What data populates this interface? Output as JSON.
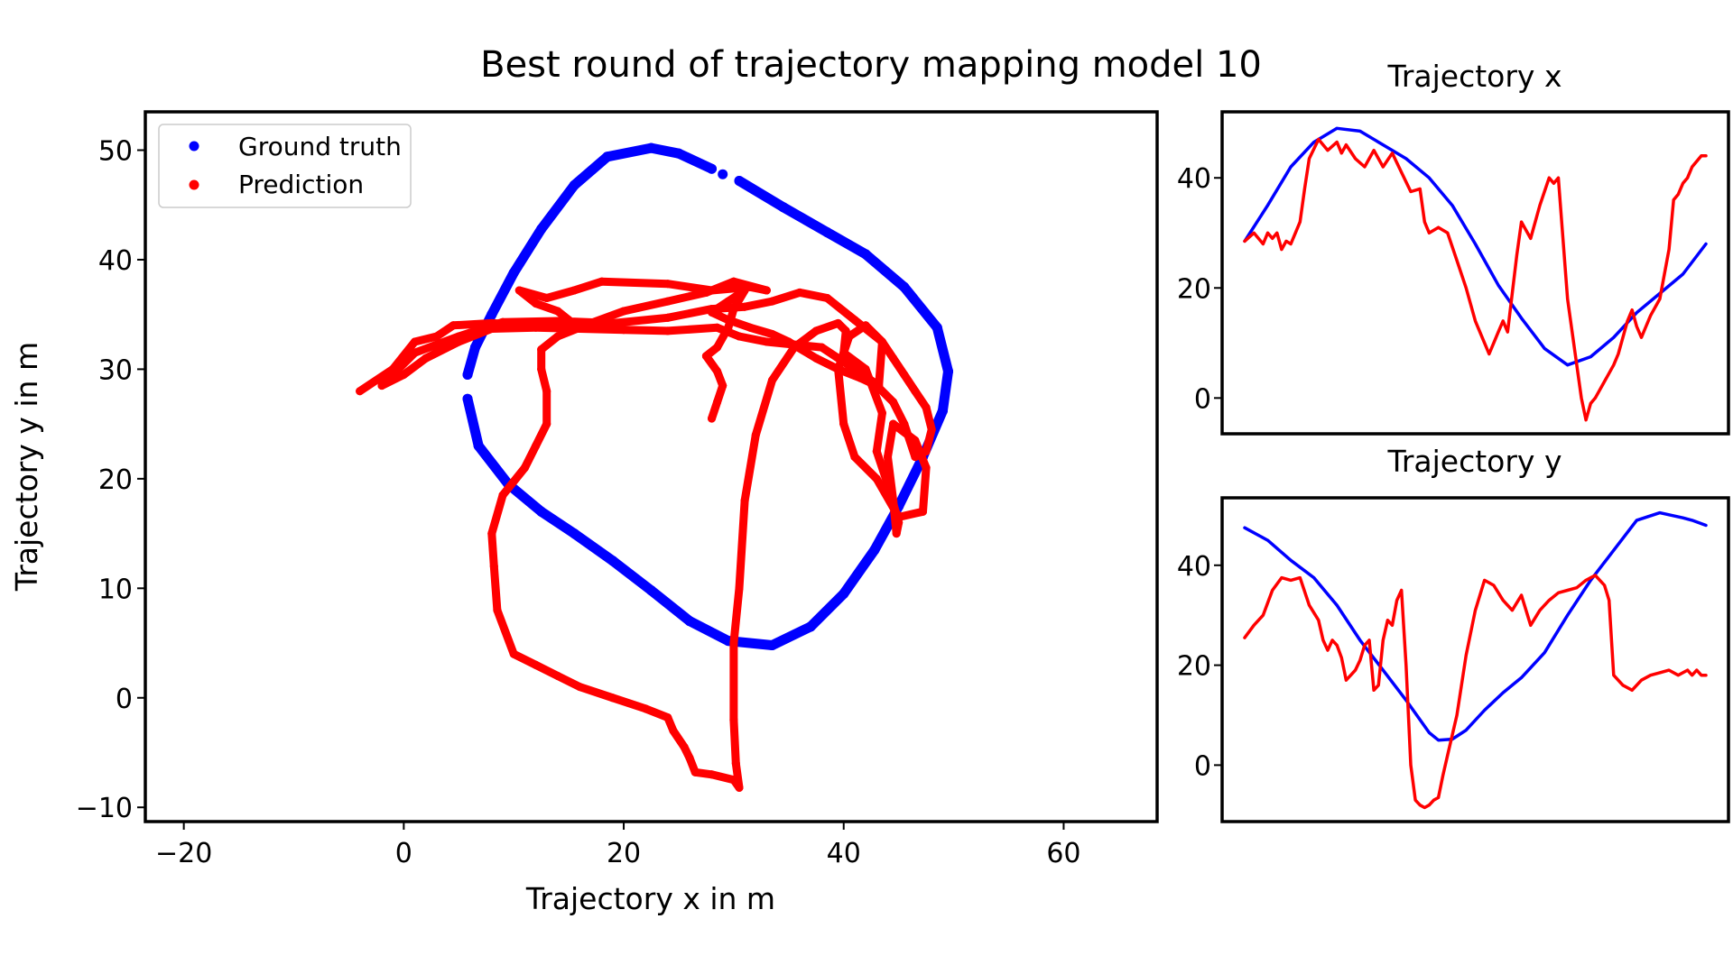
{
  "figure": {
    "title": "Best round of trajectory mapping model 10"
  },
  "chart_data": [
    {
      "type": "scatter",
      "title": "",
      "xlabel": "Trajectory x in m",
      "ylabel": "Trajectory y in m",
      "xlim": [
        -23.5,
        68.5
      ],
      "ylim": [
        -11.3,
        53.5
      ],
      "xticks": [
        -20,
        0,
        20,
        40,
        60
      ],
      "yticks": [
        -10,
        0,
        10,
        20,
        30,
        40,
        50
      ],
      "xtick_labels": [
        "−20",
        "0",
        "20",
        "40",
        "60"
      ],
      "ytick_labels": [
        "−10",
        "0",
        "10",
        "20",
        "30",
        "40",
        "50"
      ],
      "grid": false,
      "legend": {
        "placement": "top-left",
        "entries": [
          "Ground truth",
          "Prediction"
        ]
      },
      "series": [
        {
          "name": "Ground truth",
          "color": "#0000ff",
          "points": [
            [
              28,
              48.3
            ],
            [
              25,
              49.7
            ],
            [
              22.5,
              50.2
            ],
            [
              18.5,
              49.4
            ],
            [
              15.5,
              46.8
            ],
            [
              12.5,
              42.8
            ],
            [
              10,
              38.8
            ],
            [
              8,
              35
            ],
            [
              6.5,
              32
            ],
            [
              5.8,
              29.5
            ],
            [
              5.8,
              27.3
            ],
            [
              6.8,
              23
            ],
            [
              9.5,
              19.5
            ],
            [
              12.5,
              17
            ],
            [
              15.5,
              15
            ],
            [
              19,
              12.5
            ],
            [
              22.5,
              9.8
            ],
            [
              26,
              7
            ],
            [
              29.5,
              5.2
            ],
            [
              33.5,
              4.8
            ],
            [
              37,
              6.5
            ],
            [
              40,
              9.5
            ],
            [
              42.8,
              13.5
            ],
            [
              45,
              17.5
            ],
            [
              47.2,
              22
            ],
            [
              49,
              26.2
            ],
            [
              49.5,
              29.8
            ],
            [
              48.5,
              33.8
            ],
            [
              45.5,
              37.5
            ],
            [
              42,
              40.5
            ],
            [
              38.5,
              42.5
            ],
            [
              34.5,
              44.8
            ],
            [
              30.5,
              47.2
            ],
            [
              29,
              47.8
            ]
          ]
        },
        {
          "name": "Prediction",
          "color": "#ff0000",
          "points": [
            [
              -4,
              28
            ],
            [
              -1,
              30
            ],
            [
              1,
              32.5
            ],
            [
              3,
              33
            ],
            [
              4.5,
              34
            ],
            [
              8,
              34.2
            ],
            [
              12,
              34
            ],
            [
              15,
              34.5
            ],
            [
              14,
              35.3
            ],
            [
              12,
              36
            ],
            [
              10.5,
              37.2
            ],
            [
              13,
              36.5
            ],
            [
              15.5,
              37.2
            ],
            [
              18,
              38
            ],
            [
              24,
              37.8
            ],
            [
              28,
              37.2
            ],
            [
              31.5,
              37.5
            ],
            [
              33,
              37.2
            ],
            [
              30,
              38
            ],
            [
              27.5,
              37
            ],
            [
              24,
              36.2
            ],
            [
              20,
              35.3
            ],
            [
              17,
              34.2
            ],
            [
              14,
              33
            ],
            [
              12.5,
              31.8
            ],
            [
              12.5,
              30
            ],
            [
              13,
              28
            ],
            [
              13,
              25
            ],
            [
              12,
              23
            ],
            [
              11,
              21
            ],
            [
              9,
              18.5
            ],
            [
              8,
              15
            ],
            [
              8.2,
              12
            ],
            [
              8.5,
              8
            ],
            [
              10,
              4
            ],
            [
              12,
              3
            ],
            [
              14,
              2
            ],
            [
              16,
              1
            ],
            [
              19,
              0
            ],
            [
              22,
              -1
            ],
            [
              24,
              -1.8
            ],
            [
              24.5,
              -3
            ],
            [
              25.5,
              -4.5
            ],
            [
              26,
              -5.5
            ],
            [
              26.5,
              -6.8
            ],
            [
              28,
              -7
            ],
            [
              30,
              -7.5
            ],
            [
              30.5,
              -8.2
            ],
            [
              30.2,
              -6
            ],
            [
              30,
              -2
            ],
            [
              30,
              5
            ],
            [
              30.5,
              10
            ],
            [
              31,
              18
            ],
            [
              32,
              24
            ],
            [
              33.5,
              29
            ],
            [
              35.5,
              32
            ],
            [
              37.5,
              33.5
            ],
            [
              39.5,
              34.2
            ],
            [
              40.2,
              33.5
            ],
            [
              40,
              31.5
            ],
            [
              42,
              30
            ],
            [
              43.5,
              26
            ],
            [
              43,
              22.5
            ],
            [
              44,
              19.5
            ],
            [
              45,
              16
            ],
            [
              44.8,
              15
            ],
            [
              44.5,
              18
            ],
            [
              44,
              22
            ],
            [
              44.5,
              25
            ],
            [
              46.5,
              23.5
            ],
            [
              47.5,
              21
            ],
            [
              47.2,
              17
            ],
            [
              45,
              16.5
            ],
            [
              43,
              20
            ],
            [
              41,
              22
            ],
            [
              40,
              25
            ],
            [
              39.5,
              30
            ],
            [
              40.5,
              33
            ],
            [
              42,
              34
            ],
            [
              43.5,
              32.5
            ],
            [
              43.2,
              28.5
            ],
            [
              41,
              30
            ],
            [
              38,
              32
            ],
            [
              33,
              32.5
            ],
            [
              30.5,
              33
            ],
            [
              28.5,
              33.8
            ],
            [
              24,
              33.5
            ],
            [
              20,
              33.6
            ],
            [
              16,
              33.7
            ],
            [
              12,
              33.8
            ],
            [
              8,
              33.7
            ],
            [
              5,
              32.5
            ],
            [
              2,
              31
            ],
            [
              0,
              29.5
            ],
            [
              -2,
              28.5
            ],
            [
              1,
              31.5
            ],
            [
              5,
              33
            ],
            [
              9,
              34.3
            ],
            [
              14,
              34.4
            ],
            [
              19,
              34.2
            ],
            [
              24,
              34.7
            ],
            [
              28,
              35.5
            ],
            [
              31,
              35.7
            ],
            [
              33.5,
              36.2
            ],
            [
              36,
              37
            ],
            [
              38.5,
              36.5
            ],
            [
              41,
              34.5
            ],
            [
              43.5,
              32.5
            ],
            [
              44.5,
              31
            ],
            [
              45.5,
              29.5
            ],
            [
              46.5,
              28
            ],
            [
              47.5,
              26.5
            ],
            [
              48,
              24.5
            ],
            [
              47.5,
              22.5
            ],
            [
              46.5,
              22
            ],
            [
              45.5,
              25
            ],
            [
              44.5,
              27
            ],
            [
              43,
              28.5
            ],
            [
              41.5,
              29.2
            ],
            [
              39.5,
              30
            ],
            [
              37.5,
              31
            ],
            [
              35,
              32.5
            ],
            [
              33.5,
              33.2
            ],
            [
              31.5,
              33.8
            ],
            [
              29.5,
              34.5
            ],
            [
              28,
              35.2
            ],
            [
              29.5,
              36.2
            ],
            [
              31,
              37.2
            ],
            [
              30,
              35.5
            ],
            [
              29.5,
              33.8
            ],
            [
              28.5,
              32
            ],
            [
              27.5,
              31.2
            ],
            [
              28.5,
              29.8
            ],
            [
              29,
              28.5
            ],
            [
              28.5,
              27
            ],
            [
              28,
              25.5
            ]
          ]
        }
      ]
    },
    {
      "type": "line",
      "title": "Trajectory x",
      "xlabel": "",
      "ylabel": "",
      "ylim": [
        -6.5,
        52
      ],
      "yticks": [
        0,
        20,
        40
      ],
      "ytick_labels": [
        "0",
        "20",
        "40"
      ],
      "xticks": [],
      "grid": false,
      "series": [
        {
          "name": "Ground truth",
          "color": "#0000ff",
          "x": [
            0,
            5,
            10,
            15,
            20,
            25,
            30,
            35,
            40,
            45,
            50,
            55,
            60,
            65,
            70,
            75,
            80,
            85,
            90,
            95,
            100
          ],
          "y": [
            28.5,
            35,
            42,
            46.5,
            49,
            48.5,
            46,
            43.5,
            40,
            35,
            28,
            20.5,
            14.5,
            9,
            6,
            7.5,
            11,
            15.5,
            19,
            22.5,
            28
          ]
        },
        {
          "name": "Prediction",
          "color": "#ff0000",
          "x": [
            0,
            2,
            4,
            5,
            6,
            7,
            8,
            9,
            10,
            11,
            12,
            13,
            14,
            16,
            18,
            20,
            21,
            22,
            24,
            26,
            28,
            30,
            32,
            34,
            36,
            38,
            39,
            40,
            42,
            44,
            46,
            48,
            50,
            52,
            53,
            54,
            55,
            56,
            57,
            58,
            59,
            60,
            62,
            64,
            66,
            67,
            68,
            70,
            72,
            73,
            74,
            75,
            76,
            78,
            80,
            81,
            82,
            83,
            84,
            85,
            86,
            87,
            88,
            90,
            92,
            93,
            94,
            95,
            96,
            97,
            98,
            99,
            100
          ],
          "y": [
            28.5,
            30,
            28,
            30,
            29,
            30,
            27,
            28.5,
            28,
            30,
            32,
            38,
            43.5,
            47,
            45,
            46.5,
            44.5,
            46,
            43.5,
            42,
            45,
            42,
            44.5,
            41,
            37.5,
            38,
            32,
            30,
            31,
            30,
            25,
            20,
            14,
            10,
            8,
            10,
            12,
            14,
            12,
            19,
            26,
            32,
            29,
            35,
            40,
            39,
            40,
            18,
            6,
            0,
            -4,
            -1,
            0,
            3,
            6,
            8,
            11,
            14,
            16,
            13,
            11,
            13,
            15,
            18,
            27,
            36,
            37,
            39,
            40,
            42,
            43,
            44,
            44
          ]
        }
      ]
    },
    {
      "type": "line",
      "title": "Trajectory y",
      "xlabel": "",
      "ylabel": "",
      "ylim": [
        -11.3,
        53.5
      ],
      "yticks": [
        0,
        20,
        40
      ],
      "ytick_labels": [
        "0",
        "20",
        "40"
      ],
      "xticks": [],
      "grid": false,
      "series": [
        {
          "name": "Ground truth",
          "color": "#0000ff",
          "x": [
            0,
            5,
            10,
            15,
            20,
            25,
            30,
            35,
            40,
            42,
            45,
            48,
            52,
            56,
            60,
            65,
            70,
            75,
            80,
            85,
            90,
            95,
            97,
            100
          ],
          "y": [
            47.5,
            45,
            41,
            37.5,
            32,
            25,
            19,
            13,
            6.5,
            5,
            5.2,
            7,
            11,
            14.5,
            17.5,
            22.5,
            30,
            37,
            43,
            49,
            50.5,
            49.5,
            49,
            48
          ]
        },
        {
          "name": "Prediction",
          "color": "#ff0000",
          "x": [
            0,
            2,
            4,
            6,
            8,
            10,
            12,
            14,
            16,
            17,
            18,
            19,
            20,
            21,
            22,
            23,
            24,
            25,
            26,
            27,
            28,
            29,
            30,
            31,
            32,
            33,
            34,
            35,
            36,
            37,
            38,
            39,
            40,
            41,
            42,
            43,
            44,
            46,
            48,
            50,
            52,
            54,
            56,
            58,
            60,
            62,
            64,
            66,
            68,
            70,
            72,
            74,
            76,
            78,
            79,
            80,
            82,
            84,
            86,
            88,
            90,
            92,
            94,
            96,
            97,
            98,
            99,
            100
          ],
          "y": [
            25.5,
            28,
            30,
            35,
            37.5,
            37,
            37.5,
            32,
            29,
            25,
            23,
            25,
            24,
            21.5,
            17,
            18,
            19,
            21,
            24,
            25,
            15,
            16,
            25,
            29,
            28,
            33,
            35,
            20,
            0,
            -7,
            -8,
            -8.5,
            -8,
            -7,
            -6.5,
            -2,
            2,
            10,
            22,
            31,
            37,
            36,
            33,
            31,
            34,
            28,
            31,
            33,
            34.5,
            35,
            35.5,
            37,
            38,
            36,
            33,
            18,
            16,
            15,
            17,
            18,
            18.5,
            19,
            18,
            19,
            18,
            19,
            18,
            18
          ]
        }
      ]
    }
  ]
}
